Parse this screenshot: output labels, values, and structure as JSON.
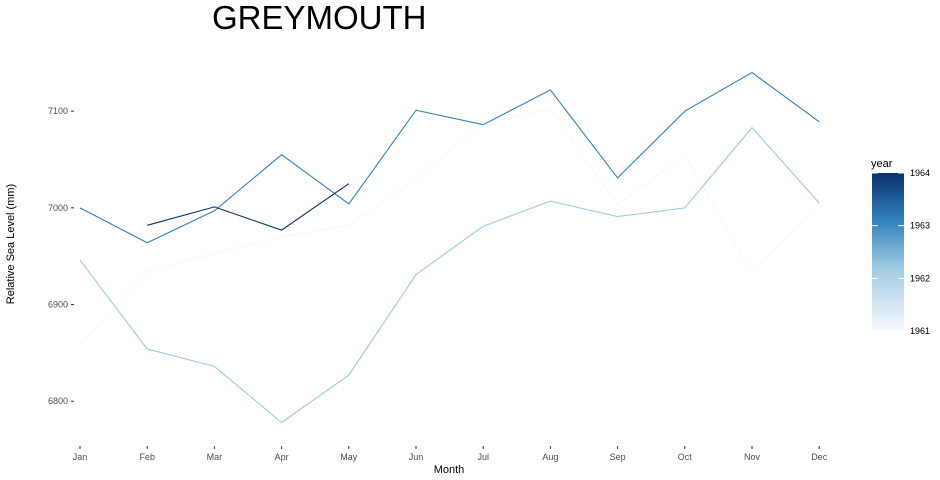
{
  "chart_data": {
    "type": "line",
    "title": "GREYMOUTH",
    "xlabel": "Month",
    "ylabel": "Relative Sea Level (mm)",
    "categories": [
      "Jan",
      "Feb",
      "Mar",
      "Apr",
      "May",
      "Jun",
      "Jul",
      "Aug",
      "Sep",
      "Oct",
      "Nov",
      "Dec"
    ],
    "ylim": [
      6778,
      7140
    ],
    "yticks": [
      6800,
      6900,
      7000,
      7100
    ],
    "grid": false,
    "legend": {
      "title": "year",
      "position": "right",
      "type": "colorbar",
      "range": [
        1961,
        1964
      ],
      "ticks": [
        1961,
        1962,
        1963,
        1964
      ],
      "color_low": "#f7fbff",
      "color_high": "#08306b"
    },
    "series": [
      {
        "year": 1961,
        "color": "#f4f9fe",
        "values": [
          6858,
          6934,
          6953,
          6970,
          6982,
          7030,
          7088,
          7102,
          7003,
          7055,
          6932,
          7005
        ]
      },
      {
        "year": 1962,
        "color": "#9ecae1",
        "values": [
          6946,
          6854,
          6836,
          6778,
          6827,
          6931,
          6981,
          7007,
          6991,
          7000,
          7083,
          7005
        ]
      },
      {
        "year": 1963,
        "color": "#3182bd",
        "values": [
          7000,
          6964,
          6997,
          7055,
          7004,
          7101,
          7086,
          7122,
          7031,
          7100,
          7140,
          7089
        ]
      },
      {
        "year": 1964,
        "color": "#08306b",
        "values": [
          null,
          6982,
          7001,
          6977,
          7025,
          null,
          null,
          null,
          null,
          null,
          null,
          null
        ]
      }
    ]
  }
}
